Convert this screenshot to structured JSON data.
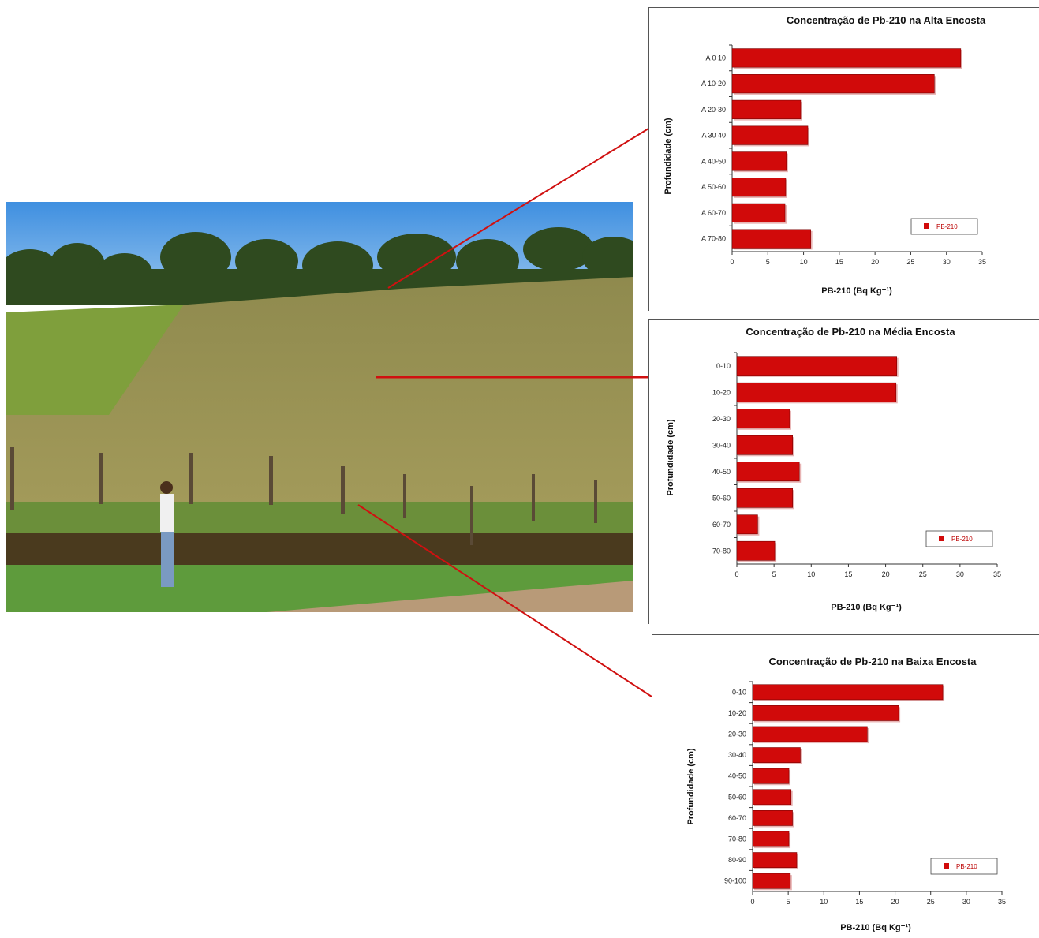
{
  "colors": {
    "bar": "#d10a0a",
    "bar_edge": "#7a0000",
    "connector": "#d01010",
    "axis": "#333333"
  },
  "chart_data": [
    {
      "type": "bar",
      "orientation": "horizontal",
      "title": "Concentração de Pb-210 na Alta Encosta",
      "xlabel": "PB-210 (Bq Kg⁻¹)",
      "ylabel": "Profundidade (cm)",
      "categories": [
        "A 0 10",
        "A 10-20",
        "A 20-30",
        "A 30 40",
        "A 40-50",
        "A 50-60",
        "A 60-70",
        "A 70-80"
      ],
      "values": [
        32,
        28.3,
        9.6,
        10.6,
        7.6,
        7.5,
        7.4,
        11
      ],
      "xlim": [
        0,
        35
      ],
      "xticks": [
        0,
        5,
        10,
        15,
        20,
        25,
        30,
        35
      ],
      "legend": "PB-210",
      "legend_position": "bottom-right"
    },
    {
      "type": "bar",
      "orientation": "horizontal",
      "title": "Concentração de Pb-210 na Média Encosta",
      "xlabel": "PB-210 (Bq Kg⁻¹)",
      "ylabel": "Profundidade (cm)",
      "categories": [
        "0-10",
        "10-20",
        "20-30",
        "30-40",
        "40-50",
        "50-60",
        "60-70",
        "70-80"
      ],
      "values": [
        21.5,
        21.4,
        7.1,
        7.5,
        8.4,
        7.5,
        2.8,
        5.1
      ],
      "xlim": [
        0,
        35
      ],
      "xticks": [
        0,
        5,
        10,
        15,
        20,
        25,
        30,
        35
      ],
      "legend": "PB-210",
      "legend_position": "bottom-right"
    },
    {
      "type": "bar",
      "orientation": "horizontal",
      "title": "Concentração de Pb-210 na Baixa Encosta",
      "xlabel": "PB-210 (Bq Kg⁻¹)",
      "ylabel": "Profundidade (cm)",
      "categories": [
        "0-10",
        "10-20",
        "20-30",
        "30-40",
        "40-50",
        "50-60",
        "60-70",
        "70-80",
        "80-90",
        "90-100"
      ],
      "values": [
        26.7,
        20.5,
        16.1,
        6.7,
        5.1,
        5.4,
        5.6,
        5.1,
        6.2,
        5.3
      ],
      "xlim": [
        0,
        35
      ],
      "xticks": [
        0,
        5,
        10,
        15,
        20,
        25,
        30,
        35
      ],
      "legend": "PB-210",
      "legend_position": "bottom-right"
    }
  ]
}
